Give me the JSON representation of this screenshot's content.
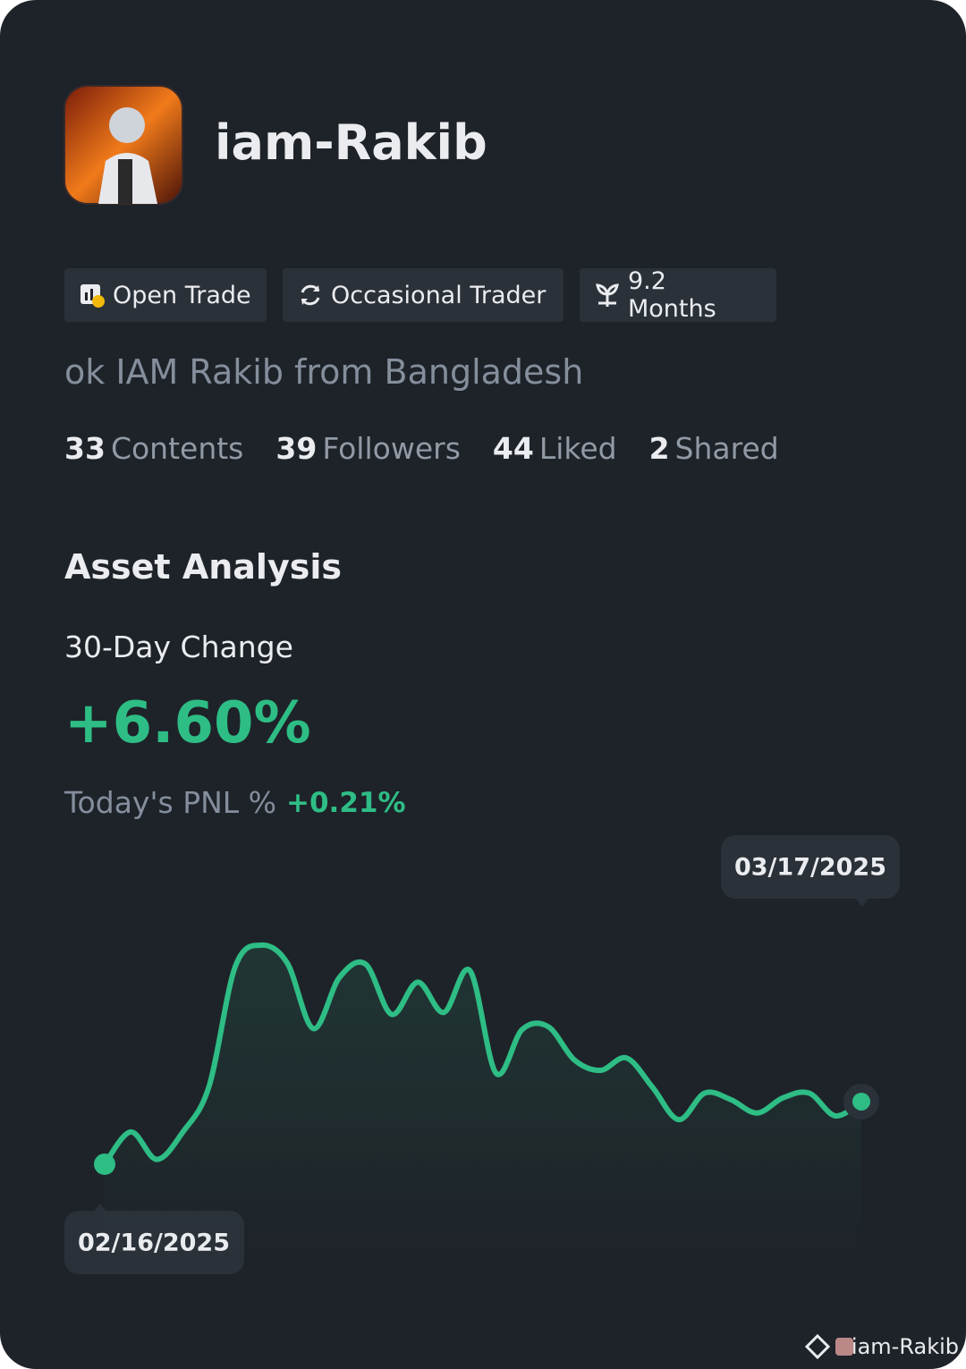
{
  "profile": {
    "name": "iam-Rakib",
    "tags": [
      "Open Trade",
      "Occasional Trader",
      "9.2 Months"
    ],
    "bio": "ok IAM Rakib from Bangladesh",
    "stats": [
      {
        "value": 33,
        "label": "Contents"
      },
      {
        "value": 39,
        "label": "Followers"
      },
      {
        "value": 44,
        "label": "Liked"
      },
      {
        "value": 2,
        "label": "Shared"
      }
    ]
  },
  "analysis": {
    "title": "Asset Analysis",
    "change_label": "30-Day Change",
    "change_value": "+6.60%",
    "pnl_label": "Today's PNL %",
    "pnl_value": "+0.21%"
  },
  "chart_data": {
    "type": "line",
    "categories": [
      "02/16/2025",
      null,
      null,
      null,
      null,
      null,
      null,
      null,
      null,
      null,
      null,
      null,
      null,
      null,
      null,
      null,
      null,
      null,
      null,
      null,
      null,
      null,
      null,
      null,
      null,
      null,
      null,
      null,
      null,
      "03/17/2025"
    ],
    "series": [
      {
        "color": "#2ebd85",
        "values": [
          0,
          3.4,
          0.5,
          3.4,
          8.2,
          20.8,
          23.1,
          21.2,
          14.3,
          19.7,
          21.1,
          15.8,
          19.2,
          16.0,
          20.4,
          9.6,
          14.2,
          14.5,
          11.0,
          9.9,
          11.2,
          8.1,
          4.7,
          7.5,
          6.8,
          5.4,
          7.0,
          7.5,
          5.1,
          6.6
        ]
      }
    ],
    "ylim": [
      -10,
      33
    ]
  },
  "watermark": "iam-Rakib"
}
